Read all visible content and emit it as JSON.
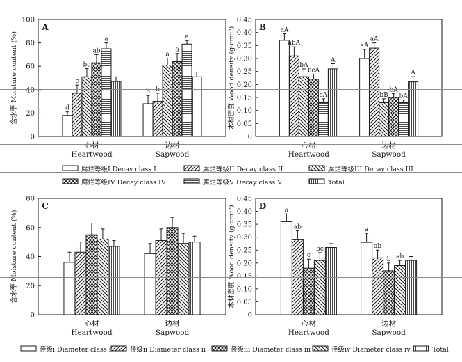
{
  "chart_data": [
    {
      "panel": "A",
      "type": "bar",
      "ylabel": "含水率 Moisture content (%)",
      "ylim": [
        0,
        100
      ],
      "yticks": [
        "0",
        "20",
        "40",
        "60",
        "80",
        "100"
      ],
      "categories": [
        {
          "zh": "心材",
          "en": "Heartwood"
        },
        {
          "zh": "边材",
          "en": "Sapwood"
        }
      ],
      "series": [
        {
          "name": "腐烂等级I Decay class I",
          "values": [
            18,
            28
          ],
          "errors": [
            3,
            7
          ],
          "letters": [
            "d",
            "b"
          ]
        },
        {
          "name": "腐烂等级II Decay class II",
          "values": [
            37,
            30
          ],
          "errors": [
            7,
            7
          ],
          "letters": [
            "c",
            "b"
          ]
        },
        {
          "name": "腐烂等级III Decay class III",
          "values": [
            51,
            61
          ],
          "errors": [
            7,
            6
          ],
          "letters": [
            "bc",
            "a"
          ]
        },
        {
          "name": "腐烂等级IV Decay class IV",
          "values": [
            63,
            64
          ],
          "errors": [
            7,
            7
          ],
          "letters": [
            "ab",
            "a"
          ]
        },
        {
          "name": "腐烂等级V Decay class V",
          "values": [
            75,
            79
          ],
          "errors": [
            5,
            3
          ],
          "letters": [
            "a",
            "a"
          ]
        },
        {
          "name": "Total",
          "values": [
            47,
            51
          ],
          "errors": [
            4,
            4
          ],
          "letters": [
            "",
            ""
          ]
        }
      ]
    },
    {
      "panel": "B",
      "type": "bar",
      "ylabel": "木材密度 Wood density (g·cm⁻³)",
      "ylim": [
        0,
        0.45
      ],
      "yticks": [
        "0",
        "0.05",
        "0.10",
        "0.15",
        "0.20",
        "0.25",
        "0.30",
        "0.35",
        "0.40",
        "0.45"
      ],
      "categories": [
        {
          "zh": "心材",
          "en": "Heartwood"
        },
        {
          "zh": "边材",
          "en": "Sapwood"
        }
      ],
      "series": [
        {
          "name": "腐烂等级I Decay class I",
          "values": [
            0.37,
            0.3
          ],
          "errors": [
            0.025,
            0.035
          ],
          "letters": [
            "aA",
            "aA"
          ]
        },
        {
          "name": "腐烂等级II Decay class II",
          "values": [
            0.31,
            0.34
          ],
          "errors": [
            0.035,
            0.02
          ],
          "letters": [
            "abA",
            "aA"
          ]
        },
        {
          "name": "腐烂等级III Decay class III",
          "values": [
            0.23,
            0.13
          ],
          "errors": [
            0.03,
            0.015
          ],
          "letters": [
            "bA",
            "bB"
          ]
        },
        {
          "name": "腐烂等级IV Decay class IV",
          "values": [
            0.22,
            0.15
          ],
          "errors": [
            0.02,
            0.015
          ],
          "letters": [
            "bcA",
            "bA"
          ]
        },
        {
          "name": "腐烂等级V Decay class V",
          "values": [
            0.13,
            0.13
          ],
          "errors": [
            0.015,
            0.01
          ],
          "letters": [
            "cA",
            "bA"
          ]
        },
        {
          "name": "Total",
          "values": [
            0.26,
            0.21
          ],
          "errors": [
            0.02,
            0.02
          ],
          "letters": [
            "A",
            "A"
          ]
        }
      ]
    },
    {
      "panel": "C",
      "type": "bar",
      "ylabel": "含水率 Moisture content (%)",
      "ylim": [
        0,
        80
      ],
      "yticks": [
        "0",
        "20",
        "40",
        "60",
        "80"
      ],
      "categories": [
        {
          "zh": "心材",
          "en": "Heartwood"
        },
        {
          "zh": "边材",
          "en": "Sapwood"
        }
      ],
      "series": [
        {
          "name": "径级i Diameter class i",
          "values": [
            36,
            42
          ],
          "errors": [
            7,
            7
          ],
          "letters": [
            "",
            ""
          ]
        },
        {
          "name": "径级ii Diameter class ii",
          "values": [
            43,
            51
          ],
          "errors": [
            7,
            8
          ],
          "letters": [
            "",
            ""
          ]
        },
        {
          "name": "径级iii Diameter class iii",
          "values": [
            55,
            60
          ],
          "errors": [
            8,
            7
          ],
          "letters": [
            "",
            ""
          ]
        },
        {
          "name": "径级iv Diameter class iv",
          "values": [
            52,
            49
          ],
          "errors": [
            7,
            7
          ],
          "letters": [
            "",
            ""
          ]
        },
        {
          "name": "Total",
          "values": [
            47,
            50
          ],
          "errors": [
            4,
            4
          ],
          "letters": [
            "",
            ""
          ]
        }
      ]
    },
    {
      "panel": "D",
      "type": "bar",
      "ylabel": "木材密度 Wood density (g·cm⁻³)",
      "ylim": [
        0,
        0.45
      ],
      "yticks": [
        "0",
        "0.05",
        "0.10",
        "0.15",
        "0.20",
        "0.25",
        "0.30",
        "0.35",
        "0.40",
        "0.45"
      ],
      "categories": [
        {
          "zh": "心材",
          "en": "Heartwood"
        },
        {
          "zh": "边材",
          "en": "Sapwood"
        }
      ],
      "series": [
        {
          "name": "径级i Diameter class i",
          "values": [
            0.36,
            0.28
          ],
          "errors": [
            0.03,
            0.035
          ],
          "letters": [
            "a",
            "a"
          ]
        },
        {
          "name": "径级ii Diameter class ii",
          "values": [
            0.29,
            0.22
          ],
          "errors": [
            0.035,
            0.03
          ],
          "letters": [
            "ab",
            "ab"
          ]
        },
        {
          "name": "径级iii Diameter class iii",
          "values": [
            0.18,
            0.17
          ],
          "errors": [
            0.035,
            0.03
          ],
          "letters": [
            "c",
            "b"
          ]
        },
        {
          "name": "径级iv Diameter class iv",
          "values": [
            0.21,
            0.19
          ],
          "errors": [
            0.03,
            0.02
          ],
          "letters": [
            "bc",
            "ab"
          ]
        },
        {
          "name": "Total",
          "values": [
            0.26,
            0.21
          ],
          "errors": [
            0.015,
            0.015
          ],
          "letters": [
            "",
            ""
          ]
        }
      ]
    }
  ],
  "legend_decay": [
    "腐烂等级I Decay class I",
    "腐烂等级II Decay class II",
    "腐烂等级III Decay class III",
    "腐烂等级IV Decay class IV",
    "腐烂等级V Decay class V",
    "Total"
  ],
  "legend_diameter": [
    "径级i Diameter class i",
    "径级ii Diameter class ii",
    "径级iii Diameter class iii",
    "径级iv Diameter class iv",
    "Total"
  ],
  "colors": {
    "ink": "#1a1a1a",
    "fill": "#ffffff",
    "rule": "#8c8c8c"
  }
}
